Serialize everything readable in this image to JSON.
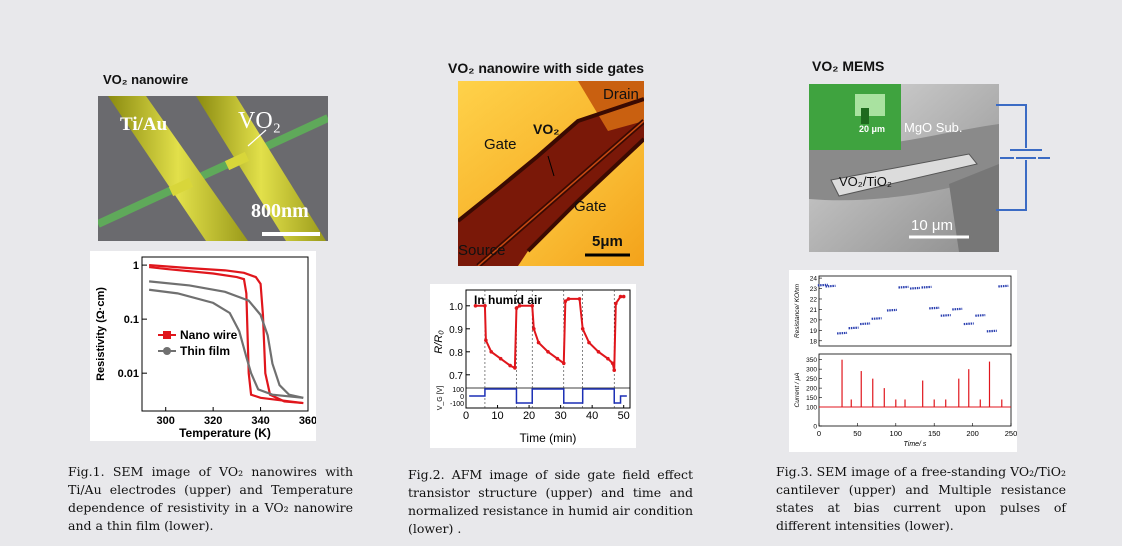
{
  "fig1": {
    "sem_title": "VO₂ nanowire",
    "sem_labels": {
      "electrode": "Ti/Au",
      "wire": "VO₂",
      "scale": "800nm"
    },
    "chart_data": {
      "type": "line",
      "xlabel": "Temperature (K)",
      "ylabel": "Resistivity (Ω·cm)",
      "xlim": [
        290,
        360
      ],
      "x_ticks": [
        "300",
        "320",
        "340",
        "360"
      ],
      "y_ticks": [
        "1",
        "0.1",
        "0.01"
      ],
      "y_scale": "log",
      "legend_position": "center-right",
      "series": [
        {
          "name": "Nano wire",
          "color": "#e0161c",
          "heating": [
            [
              293,
              1.0
            ],
            [
              310,
              0.88
            ],
            [
              325,
              0.8
            ],
            [
              333,
              0.72
            ],
            [
              338,
              0.6
            ],
            [
              340,
              0.45
            ],
            [
              341,
              0.12
            ],
            [
              342,
              0.01
            ],
            [
              344,
              0.004
            ],
            [
              350,
              0.003
            ],
            [
              358,
              0.0028
            ]
          ],
          "cooling": [
            [
              358,
              0.0028
            ],
            [
              340,
              0.0035
            ],
            [
              336,
              0.004
            ],
            [
              335,
              0.01
            ],
            [
              334,
              0.3
            ],
            [
              333,
              0.55
            ],
            [
              330,
              0.6
            ],
            [
              320,
              0.7
            ],
            [
              300,
              0.85
            ],
            [
              293,
              0.92
            ]
          ]
        },
        {
          "name": "Thin film",
          "color": "#707070",
          "heating": [
            [
              293,
              0.5
            ],
            [
              310,
              0.42
            ],
            [
              325,
              0.32
            ],
            [
              335,
              0.22
            ],
            [
              340,
              0.12
            ],
            [
              343,
              0.05
            ],
            [
              345,
              0.015
            ],
            [
              348,
              0.006
            ],
            [
              352,
              0.004
            ],
            [
              358,
              0.0035
            ]
          ],
          "cooling": [
            [
              358,
              0.0035
            ],
            [
              345,
              0.004
            ],
            [
              339,
              0.005
            ],
            [
              336,
              0.01
            ],
            [
              334,
              0.02
            ],
            [
              331,
              0.06
            ],
            [
              327,
              0.13
            ],
            [
              320,
              0.2
            ],
            [
              305,
              0.3
            ],
            [
              293,
              0.35
            ]
          ]
        }
      ]
    },
    "caption": "Fig.1. SEM image of VO₂ nanowires with Ti/Au electrodes (upper) and Temperature dependence of resistivity in a VO₂ nanowire and a thin film (lower)."
  },
  "fig2": {
    "title": "VO₂ nanowire with side gates",
    "afm_labels": {
      "drain": "Drain",
      "gate1": "Gate",
      "wire": "VO₂",
      "gate2": "Gate",
      "source": "Source",
      "scale": "5μm"
    },
    "chart_data": {
      "type": "line",
      "annotation": "In humid air",
      "xlabel": "Time (min)",
      "ylabel_top": "R/R₀",
      "ylabel_bottom": "V_G [V]",
      "xlim": [
        0,
        52
      ],
      "x_ticks": [
        "0",
        "10",
        "20",
        "30",
        "40",
        "50"
      ],
      "y_ticks": [
        "1.0",
        "0.9",
        "0.8",
        "0.7"
      ],
      "vg_ticks": [
        "100",
        "0",
        "-100"
      ],
      "ylim": [
        0.65,
        1.05
      ],
      "series": [
        {
          "name": "R/R0",
          "color": "#e0161c",
          "points": [
            [
              3,
              1.0
            ],
            [
              6,
              1.0
            ],
            [
              6.3,
              0.85
            ],
            [
              8,
              0.8
            ],
            [
              11,
              0.77
            ],
            [
              14,
              0.74
            ],
            [
              15.5,
              0.73
            ],
            [
              16,
              0.99
            ],
            [
              17,
              1.0
            ],
            [
              21,
              1.0
            ],
            [
              21.5,
              0.9
            ],
            [
              23,
              0.84
            ],
            [
              26,
              0.8
            ],
            [
              29,
              0.77
            ],
            [
              31,
              0.75
            ],
            [
              31.5,
              1.02
            ],
            [
              32.5,
              1.03
            ],
            [
              36,
              1.03
            ],
            [
              37,
              0.9
            ],
            [
              39,
              0.84
            ],
            [
              42,
              0.8
            ],
            [
              45,
              0.77
            ],
            [
              46.5,
              0.75
            ],
            [
              47,
              0.72
            ],
            [
              47.5,
              1.01
            ],
            [
              49,
              1.04
            ],
            [
              50,
              1.04
            ]
          ]
        },
        {
          "name": "VG",
          "color": "#1b2fb5",
          "points": [
            [
              1,
              0
            ],
            [
              6,
              0
            ],
            [
              6,
              100
            ],
            [
              16,
              100
            ],
            [
              16,
              -100
            ],
            [
              21,
              -100
            ],
            [
              21,
              100
            ],
            [
              31,
              100
            ],
            [
              31,
              -100
            ],
            [
              37,
              -100
            ],
            [
              37,
              100
            ],
            [
              47,
              100
            ],
            [
              47,
              -100
            ],
            [
              49,
              -100
            ],
            [
              49,
              0
            ],
            [
              51,
              0
            ]
          ]
        }
      ]
    },
    "caption": "Fig.2.  AFM image of side gate field effect transistor structure (upper) and time and normalized resistance in humid air condition (lower) ."
  },
  "fig3": {
    "title": "VO₂ MEMS",
    "sem_labels": {
      "inset_scale": "20 μm",
      "substrate": "MgO Sub.",
      "cantilever": "VO₂/TiO₂",
      "scale": "10 μm"
    },
    "chart_data": {
      "type": "scatter",
      "xlabel": "Time/ s",
      "ylabel_top": "Resistance/ KOhm",
      "ylabel_bottom": "Current / μA",
      "xlim": [
        0,
        250
      ],
      "x_ticks": [
        "0",
        "50",
        "100",
        "150",
        "200",
        "250"
      ],
      "y_ticks_top": [
        "24",
        "23",
        "22",
        "21",
        "20",
        "19",
        "18"
      ],
      "y_ticks_bottom": [
        "350",
        "300",
        "250",
        "200",
        "150",
        "100",
        "0"
      ],
      "resistance": [
        [
          5,
          23.3
        ],
        [
          15,
          23.2
        ],
        [
          30,
          18.7
        ],
        [
          45,
          19.2
        ],
        [
          60,
          19.6
        ],
        [
          75,
          20.1
        ],
        [
          95,
          20.9
        ],
        [
          110,
          23.1
        ],
        [
          125,
          23.0
        ],
        [
          140,
          23.1
        ],
        [
          150,
          21.1
        ],
        [
          165,
          20.4
        ],
        [
          180,
          21.0
        ],
        [
          195,
          19.6
        ],
        [
          210,
          20.4
        ],
        [
          225,
          18.9
        ],
        [
          240,
          23.2
        ]
      ],
      "current_pulses": [
        [
          30,
          350
        ],
        [
          42,
          140
        ],
        [
          55,
          290
        ],
        [
          70,
          250
        ],
        [
          85,
          200
        ],
        [
          100,
          140
        ],
        [
          112,
          140
        ],
        [
          135,
          240
        ],
        [
          150,
          140
        ],
        [
          165,
          140
        ],
        [
          182,
          250
        ],
        [
          195,
          300
        ],
        [
          210,
          140
        ],
        [
          222,
          340
        ],
        [
          238,
          140
        ]
      ],
      "color_resistance": "#2a3fb0",
      "color_current": "#e0161c"
    },
    "caption": "Fig.3.   SEM image of a free-standing VO₂/TiO₂ cantilever (upper) and Multiple resistance states at bias current upon pulses of different intensities (lower)."
  }
}
